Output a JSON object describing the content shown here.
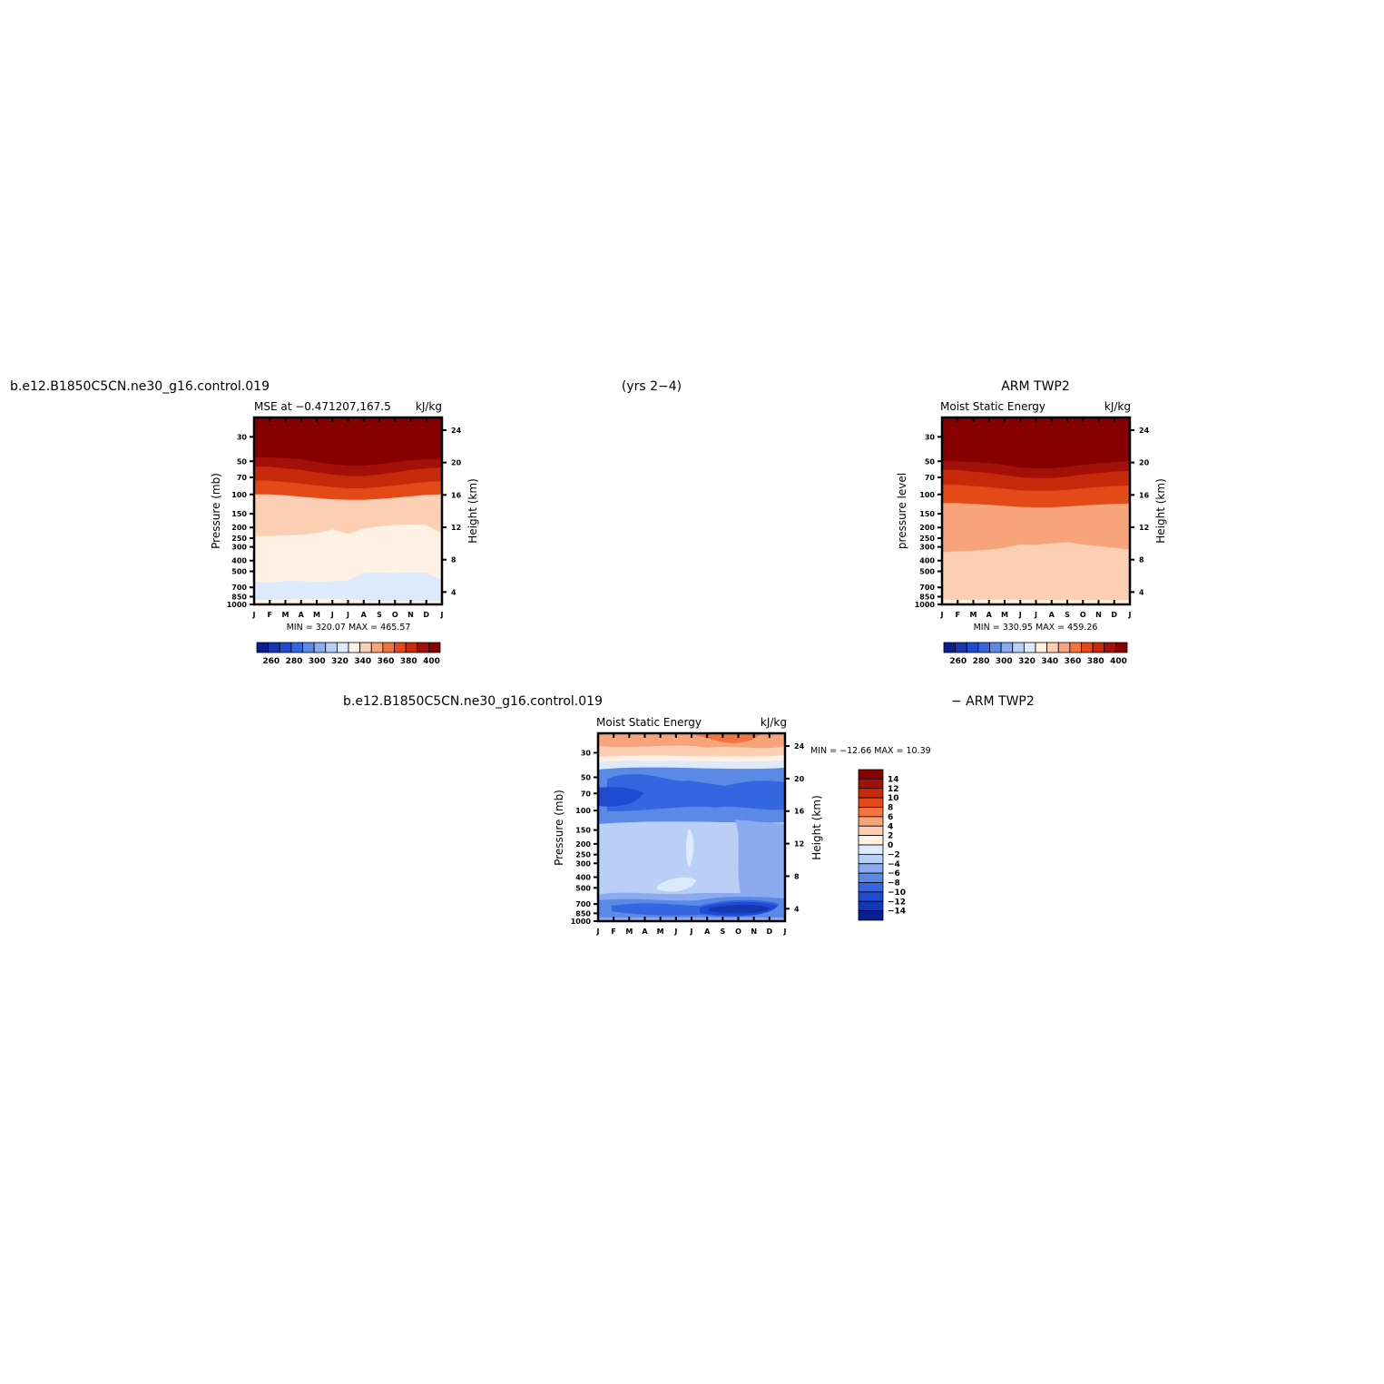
{
  "header": {
    "left_case": "b.e12.B1850C5CN.ne30_g16.control.019",
    "years": "(yrs 2−4)",
    "right_case": "ARM TWP2",
    "bottom_case": "b.e12.B1850C5CN.ne30_g16.control.019",
    "bottom_obs": "− ARM TWP2"
  },
  "months": [
    "J",
    "F",
    "M",
    "A",
    "M",
    "J",
    "J",
    "A",
    "S",
    "O",
    "N",
    "D",
    "J"
  ],
  "pressure_ticks": [
    "30",
    "50",
    "70",
    "100",
    "150",
    "200",
    "250",
    "300",
    "400",
    "500",
    "700",
    "850",
    "1000"
  ],
  "pressure_values": [
    30,
    50,
    70,
    100,
    150,
    200,
    250,
    300,
    400,
    500,
    700,
    850,
    1000
  ],
  "height_ticks": [
    "24",
    "20",
    "16",
    "12",
    "8",
    "4"
  ],
  "height_values": [
    24,
    20,
    16,
    12,
    8,
    4
  ],
  "colors": {
    "full_palette": [
      "#0a1f8f",
      "#1537b0",
      "#1e4bd1",
      "#3366e0",
      "#5a8ae6",
      "#8caaf0",
      "#b9cff5",
      "#ddeafc",
      "#fff1e3",
      "#fccfb5",
      "#f7a47b",
      "#f2743f",
      "#e44a18",
      "#c62a0b",
      "#a31007",
      "#870000"
    ],
    "full_levels": [
      "260",
      "280",
      "300",
      "320",
      "340",
      "360",
      "380",
      "400"
    ],
    "diff_levels": [
      "14",
      "12",
      "10",
      "8",
      "6",
      "4",
      "2",
      "0",
      "−2",
      "−4",
      "−6",
      "−8",
      "−10",
      "−12",
      "−14"
    ],
    "diff_palette": [
      "#870000",
      "#a31007",
      "#c62a0b",
      "#e44a18",
      "#f2743f",
      "#f7a47b",
      "#fccfb5",
      "#fff1e3",
      "#ddeafc",
      "#b9cff5",
      "#8caaf0",
      "#5a8ae6",
      "#3366e0",
      "#1e4bd1",
      "#1537b0",
      "#0a1f8f"
    ]
  },
  "chart_data": [
    {
      "type": "heatmap",
      "panel": "model",
      "title": "MSE at −0.471207,167.5",
      "units": "kJ/kg",
      "ylabel": "Pressure (mb)",
      "y2label": "Height (km)",
      "x": [
        "J",
        "F",
        "M",
        "A",
        "M",
        "J",
        "J",
        "A",
        "S",
        "O",
        "N",
        "D",
        "J"
      ],
      "ylim": [
        1000,
        20
      ],
      "stats": "MIN = 320.07 MAX = 465.57",
      "min": 320.07,
      "max": 465.57,
      "band_boundaries_mb": [
        {
          "between": "400+|380-400",
          "values": [
            46,
            46,
            47,
            48,
            51,
            53,
            55,
            55,
            53,
            51,
            49,
            48,
            48
          ]
        },
        {
          "between": "380-400|360-380",
          "values": [
            56,
            56,
            58,
            60,
            63,
            66,
            68,
            68,
            66,
            63,
            60,
            58,
            57
          ]
        },
        {
          "between": "360-380|340-360",
          "values": [
            75,
            75,
            77,
            80,
            83,
            86,
            88,
            88,
            86,
            83,
            80,
            77,
            76
          ]
        },
        {
          "between": "340-360|320-340",
          "values": [
            100,
            100,
            102,
            105,
            108,
            111,
            112,
            112,
            110,
            107,
            104,
            101,
            100
          ]
        },
        {
          "between": "320-340|300-320",
          "values": [
            240,
            238,
            236,
            233,
            225,
            208,
            228,
            205,
            195,
            190,
            188,
            190,
            225
          ]
        },
        {
          "between": "300-320|280-300",
          "values": [
            620,
            635,
            610,
            615,
            620,
            615,
            605,
            520,
            510,
            520,
            510,
            515,
            600
          ]
        },
        {
          "between": "280-300|lower",
          "values": [
            900,
            905,
            900,
            890,
            885,
            890,
            895,
            910,
            930,
            930,
            930,
            930,
            930
          ]
        }
      ]
    },
    {
      "type": "heatmap",
      "panel": "obs",
      "title": "Moist Static Energy",
      "units": "kJ/kg",
      "ylabel": "pressure level",
      "y2label": "Height (km)",
      "x": [
        "J",
        "F",
        "M",
        "A",
        "M",
        "J",
        "J",
        "A",
        "S",
        "O",
        "N",
        "D",
        "J"
      ],
      "ylim": [
        1000,
        20
      ],
      "stats": "MIN = 330.95 MAX = 459.26",
      "min": 330.95,
      "max": 459.26,
      "band_boundaries_mb": [
        {
          "between": "400+|380-400",
          "values": [
            50,
            50,
            51,
            52,
            54,
            57,
            58,
            58,
            56,
            54,
            52,
            51,
            50
          ]
        },
        {
          "between": "380-400|360-380",
          "values": [
            60,
            60,
            62,
            64,
            67,
            70,
            71,
            71,
            69,
            66,
            64,
            62,
            61
          ]
        },
        {
          "between": "360-380|340-360",
          "values": [
            82,
            82,
            84,
            86,
            89,
            92,
            93,
            93,
            91,
            88,
            86,
            84,
            83
          ]
        },
        {
          "between": "340-360|320-340",
          "values": [
            120,
            120,
            122,
            124,
            127,
            130,
            131,
            131,
            129,
            126,
            124,
            122,
            121
          ]
        },
        {
          "between": "320-340|300-320",
          "values": [
            335,
            330,
            325,
            318,
            305,
            285,
            288,
            278,
            272,
            285,
            295,
            305,
            318
          ]
        },
        {
          "between": "300-320|lower",
          "values": [
            900,
            910,
            905,
            905,
            905,
            905,
            910,
            910,
            910,
            910,
            910,
            910,
            910
          ]
        }
      ]
    },
    {
      "type": "heatmap",
      "panel": "difference",
      "title": "Moist Static Energy",
      "units": "kJ/kg",
      "ylabel": "Pressure (mb)",
      "y2label": "Height (km)",
      "x": [
        "J",
        "F",
        "M",
        "A",
        "M",
        "J",
        "J",
        "A",
        "S",
        "O",
        "N",
        "D",
        "J"
      ],
      "ylim": [
        1000,
        20
      ],
      "stats": "MIN = −12.66 MAX = 10.39",
      "min": -12.66,
      "max": 10.39
    }
  ]
}
